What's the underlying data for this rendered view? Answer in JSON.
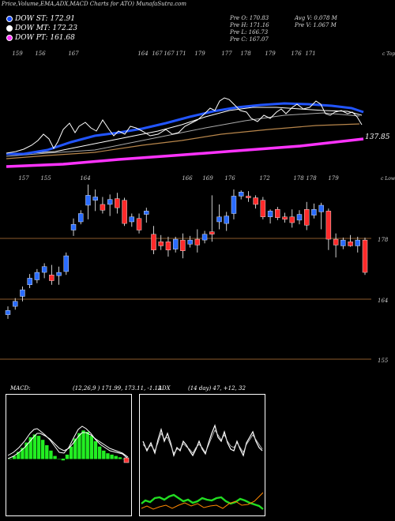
{
  "header": {
    "title": "Price,Volume,EMA,ADX,MACD Charts for ATO) MunafaSutra.com",
    "legend": [
      {
        "label": "DOW ST: 172.91",
        "color": "#1a4dff"
      },
      {
        "label": "DOW MT: 172.23",
        "color": "#ffffff"
      },
      {
        "label": "DOW PT: 161.68",
        "color": "#ff33ff"
      }
    ],
    "ohlc": {
      "open": "Pre  O: 170.83",
      "high": "Pre  H: 171.16",
      "low": "Pre  L: 166.73",
      "close": "Pre  C: 167.07",
      "avgv": "Avg V: 0.078 M",
      "prev": "Pre   V: 1.067 M"
    }
  },
  "chart_data": [
    {
      "type": "line",
      "panel": "ema-overview",
      "top_tick_labels": [
        "159",
        "156",
        "167",
        "164",
        "167",
        "167",
        "171",
        "179",
        "177",
        "178",
        "179",
        "176",
        "171"
      ],
      "right_label": "c Topo",
      "price_label": "137.85",
      "series": []
    },
    {
      "type": "candlestick",
      "panel": "price",
      "top_tick_labels": [
        "157",
        "155",
        "164",
        "166",
        "169",
        "176",
        "172",
        "178",
        "178",
        "179"
      ],
      "right_label": "c Lowes",
      "y_levels": [
        "178",
        "164",
        "155"
      ],
      "candles": [
        {
          "o": 162.8,
          "h": 163.8,
          "l": 162.3,
          "c": 163.3
        },
        {
          "o": 163.8,
          "h": 164.8,
          "l": 163.4,
          "c": 164.4
        },
        {
          "o": 165.0,
          "h": 166.2,
          "l": 164.4,
          "c": 165.8
        },
        {
          "o": 166.4,
          "h": 167.7,
          "l": 166.0,
          "c": 167.2
        },
        {
          "o": 167.0,
          "h": 168.3,
          "l": 166.6,
          "c": 167.9
        },
        {
          "o": 167.9,
          "h": 169.0,
          "l": 167.2,
          "c": 168.6
        },
        {
          "o": 167.6,
          "h": 168.8,
          "l": 166.4,
          "c": 166.9
        },
        {
          "o": 167.5,
          "h": 168.6,
          "l": 166.4,
          "c": 167.9
        },
        {
          "o": 168.0,
          "h": 170.3,
          "l": 167.6,
          "c": 169.9
        },
        {
          "o": 173.0,
          "h": 174.4,
          "l": 172.3,
          "c": 173.7
        },
        {
          "o": 174.0,
          "h": 175.4,
          "l": 173.7,
          "c": 175.0
        },
        {
          "o": 176.0,
          "h": 178.5,
          "l": 174.3,
          "c": 177.2
        },
        {
          "o": 176.6,
          "h": 177.9,
          "l": 175.3,
          "c": 177.0
        },
        {
          "o": 176.1,
          "h": 177.0,
          "l": 175.0,
          "c": 175.4
        },
        {
          "o": 176.1,
          "h": 177.3,
          "l": 174.7,
          "c": 176.7
        },
        {
          "o": 176.8,
          "h": 177.5,
          "l": 175.0,
          "c": 175.7
        },
        {
          "o": 176.6,
          "h": 176.9,
          "l": 173.5,
          "c": 173.8
        },
        {
          "o": 174.0,
          "h": 175.0,
          "l": 173.4,
          "c": 174.6
        },
        {
          "o": 174.4,
          "h": 175.0,
          "l": 172.6,
          "c": 173.0
        },
        {
          "o": 174.9,
          "h": 175.7,
          "l": 173.9,
          "c": 175.3
        },
        {
          "o": 172.5,
          "h": 173.5,
          "l": 170.1,
          "c": 170.6
        },
        {
          "o": 171.6,
          "h": 172.4,
          "l": 170.6,
          "c": 171.1
        },
        {
          "o": 171.6,
          "h": 172.2,
          "l": 169.8,
          "c": 170.6
        },
        {
          "o": 170.7,
          "h": 172.2,
          "l": 170.3,
          "c": 171.9
        },
        {
          "o": 171.8,
          "h": 172.6,
          "l": 169.6,
          "c": 170.5
        },
        {
          "o": 171.3,
          "h": 172.3,
          "l": 170.9,
          "c": 171.8
        },
        {
          "o": 171.9,
          "h": 173.1,
          "l": 170.3,
          "c": 171.2
        },
        {
          "o": 171.8,
          "h": 172.9,
          "l": 171.4,
          "c": 172.5
        },
        {
          "o": 172.8,
          "h": 177.2,
          "l": 171.6,
          "c": 172.5
        },
        {
          "o": 174.0,
          "h": 176.1,
          "l": 173.1,
          "c": 174.6
        },
        {
          "o": 173.8,
          "h": 175.2,
          "l": 172.9,
          "c": 174.7
        },
        {
          "o": 175.0,
          "h": 177.9,
          "l": 174.3,
          "c": 177.1
        },
        {
          "o": 177.1,
          "h": 177.8,
          "l": 176.7,
          "c": 177.6
        },
        {
          "o": 177.1,
          "h": 177.7,
          "l": 176.4,
          "c": 176.9
        },
        {
          "o": 176.9,
          "h": 177.2,
          "l": 175.6,
          "c": 176.1
        },
        {
          "o": 176.6,
          "h": 177.0,
          "l": 174.3,
          "c": 174.6
        },
        {
          "o": 174.6,
          "h": 175.5,
          "l": 173.8,
          "c": 175.3
        },
        {
          "o": 175.5,
          "h": 175.8,
          "l": 174.2,
          "c": 174.5
        },
        {
          "o": 174.6,
          "h": 175.1,
          "l": 173.9,
          "c": 174.3
        },
        {
          "o": 174.6,
          "h": 175.5,
          "l": 173.3,
          "c": 173.9
        },
        {
          "o": 174.2,
          "h": 175.4,
          "l": 173.7,
          "c": 174.9
        },
        {
          "o": 175.5,
          "h": 176.4,
          "l": 173.0,
          "c": 173.6
        },
        {
          "o": 174.8,
          "h": 176.2,
          "l": 174.4,
          "c": 175.5
        },
        {
          "o": 175.2,
          "h": 176.3,
          "l": 173.1,
          "c": 176.0
        },
        {
          "o": 175.3,
          "h": 175.6,
          "l": 170.6,
          "c": 171.9
        },
        {
          "o": 171.9,
          "h": 172.6,
          "l": 169.7,
          "c": 171.2
        },
        {
          "o": 171.1,
          "h": 172.1,
          "l": 170.7,
          "c": 171.8
        },
        {
          "o": 171.6,
          "h": 172.4,
          "l": 171.0,
          "c": 171.1
        },
        {
          "o": 171.1,
          "h": 172.2,
          "l": 170.3,
          "c": 171.8
        },
        {
          "o": 171.8,
          "h": 172.1,
          "l": 167.6,
          "c": 167.9
        }
      ]
    },
    {
      "type": "line",
      "panel": "macd",
      "title": "MACD",
      "params": "(12,26,9 ) 171.99,  173.11,  -1.12",
      "series": []
    },
    {
      "type": "line",
      "panel": "adx",
      "title": "ADX",
      "params": "(14  day) 47,  +12,  32",
      "series": []
    }
  ]
}
